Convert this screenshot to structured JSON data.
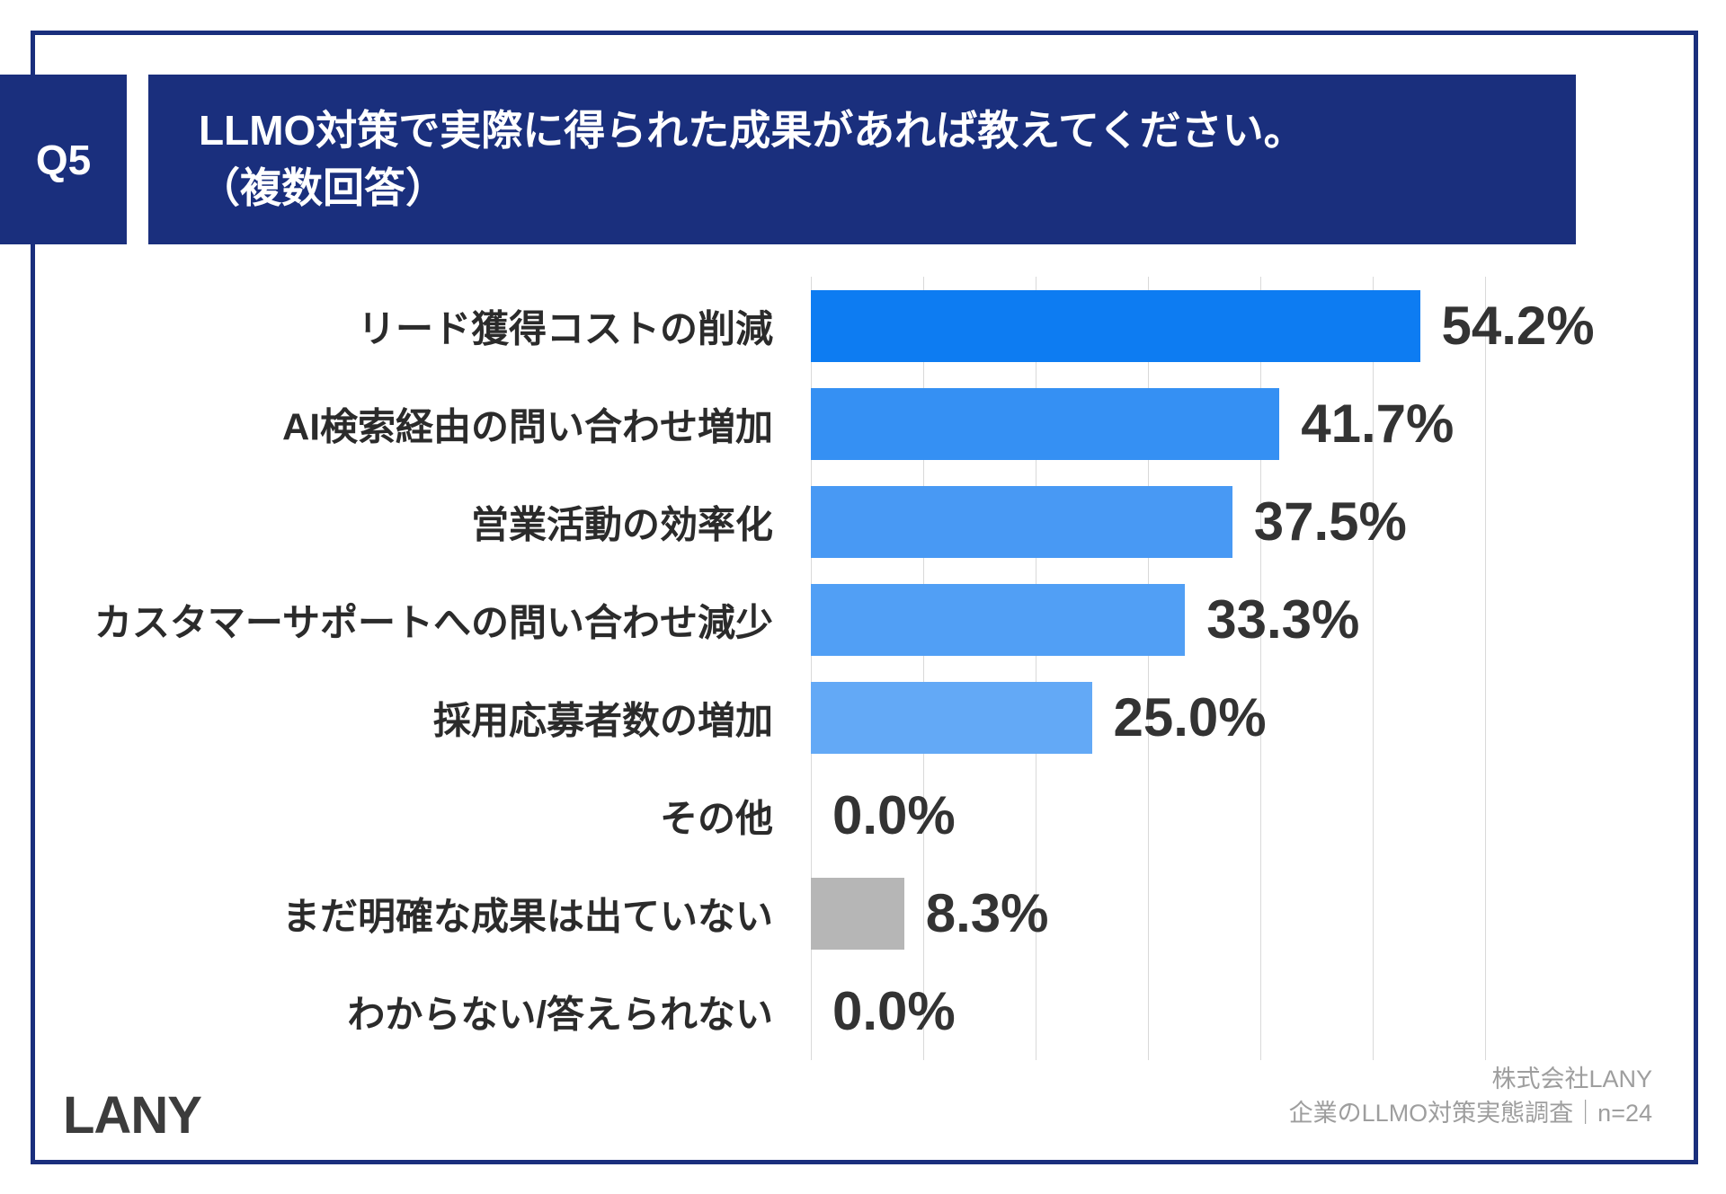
{
  "header": {
    "badge": "Q5",
    "title_line1": "LLMO対策で実際に得られた成果があれば教えてください。",
    "title_line2": "（複数回答）"
  },
  "chart_data": {
    "type": "bar",
    "orientation": "horizontal",
    "title": "LLMO対策で実際に得られた成果があれば教えてください。（複数回答）",
    "categories": [
      "リード獲得コストの削減",
      "AI検索経由の問い合わせ増加",
      "営業活動の効率化",
      "カスタマーサポートへの問い合わせ減少",
      "採用応募者数の増加",
      "その他",
      "まだ明確な成果は出ていない",
      "わからない/答えられない"
    ],
    "values": [
      54.2,
      41.7,
      37.5,
      33.3,
      25.0,
      0.0,
      8.3,
      0.0
    ],
    "value_labels": [
      "54.2%",
      "41.7%",
      "37.5%",
      "33.3%",
      "25.0%",
      "0.0%",
      "8.3%",
      "0.0%"
    ],
    "bar_colors": [
      "#0d7cf2",
      "#3590f3",
      "#4899f4",
      "#519ff5",
      "#63a9f6",
      "#74b2f7",
      "#b6b6b6",
      "#b6b6b6"
    ],
    "xlim": [
      0,
      60
    ],
    "gridline_step": 10,
    "unit": "%",
    "grid": true,
    "legend": false
  },
  "footer": {
    "logo": "LANY",
    "source_line1": "株式会社LANY",
    "source_line2": "企業のLLMO対策実態調査｜n=24"
  },
  "colors": {
    "navy": "#1a2f7d",
    "grid": "#d9d9d9",
    "label": "#2b2b2b",
    "value": "#333333",
    "muted": "#9e9e9e"
  }
}
